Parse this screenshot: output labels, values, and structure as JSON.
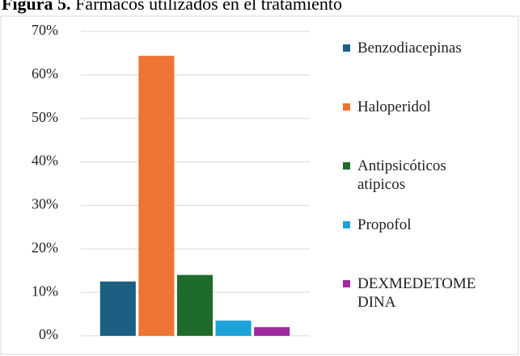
{
  "chart_data": {
    "type": "bar",
    "title_label": "Figura 5.",
    "title": "Fármacos utilizados en el tratamiento",
    "series": [
      {
        "name": "Benzodiacepinas",
        "color": "#1b5f82",
        "values": [
          12.5
        ]
      },
      {
        "name": "Haloperidol",
        "color": "#ed7432",
        "values": [
          64.4
        ]
      },
      {
        "name": "Antipsicóticos atipicos",
        "color": "#1f6b2c",
        "values": [
          14
        ]
      },
      {
        "name": "Propofol",
        "color": "#1ca3d9",
        "values": [
          3.5
        ]
      },
      {
        "name": "DEXMEDETOMEDINA",
        "color": "#a2289f",
        "values": [
          2
        ]
      }
    ],
    "ylim": [
      0,
      70
    ],
    "yticks": [
      {
        "value": 0,
        "label": "0%"
      },
      {
        "value": 10,
        "label": "10%"
      },
      {
        "value": 20,
        "label": "20%"
      },
      {
        "value": 30,
        "label": "30%"
      },
      {
        "value": 40,
        "label": "40%"
      },
      {
        "value": 50,
        "label": "50%"
      },
      {
        "value": 60,
        "label": "60%"
      },
      {
        "value": 70,
        "label": "70%"
      }
    ],
    "grid": true,
    "legend": "right"
  }
}
